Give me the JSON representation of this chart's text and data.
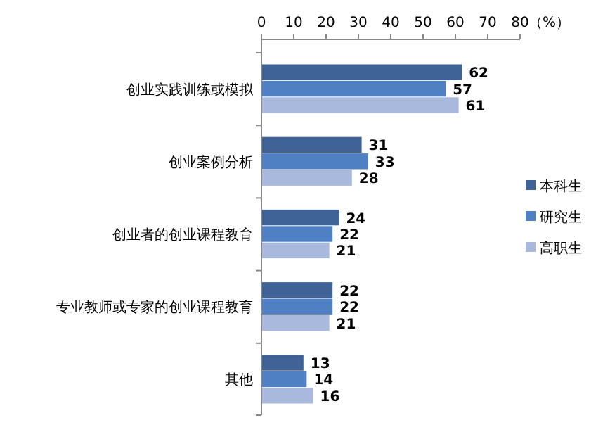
{
  "chart_data": {
    "type": "bar",
    "orientation": "horizontal",
    "xlabel": "（%）",
    "categories": [
      "创业实践训练或模拟",
      "创业案例分析",
      "创业者的创业课程教育",
      "专业教师或专家的创业课程教育",
      "其他"
    ],
    "series": [
      {
        "name": "本科生",
        "color": "#3f6297",
        "values": [
          62,
          31,
          24,
          22,
          13
        ]
      },
      {
        "name": "研究生",
        "color": "#4f80c4",
        "values": [
          57,
          33,
          22,
          22,
          14
        ]
      },
      {
        "name": "高职生",
        "color": "#a9b9dd",
        "values": [
          61,
          28,
          21,
          21,
          16
        ]
      }
    ],
    "xlim": [
      0,
      80
    ],
    "xticks": [
      0,
      10,
      20,
      30,
      40,
      50,
      60,
      70,
      80
    ],
    "data_labels": true,
    "legend": "right",
    "grid": false
  }
}
